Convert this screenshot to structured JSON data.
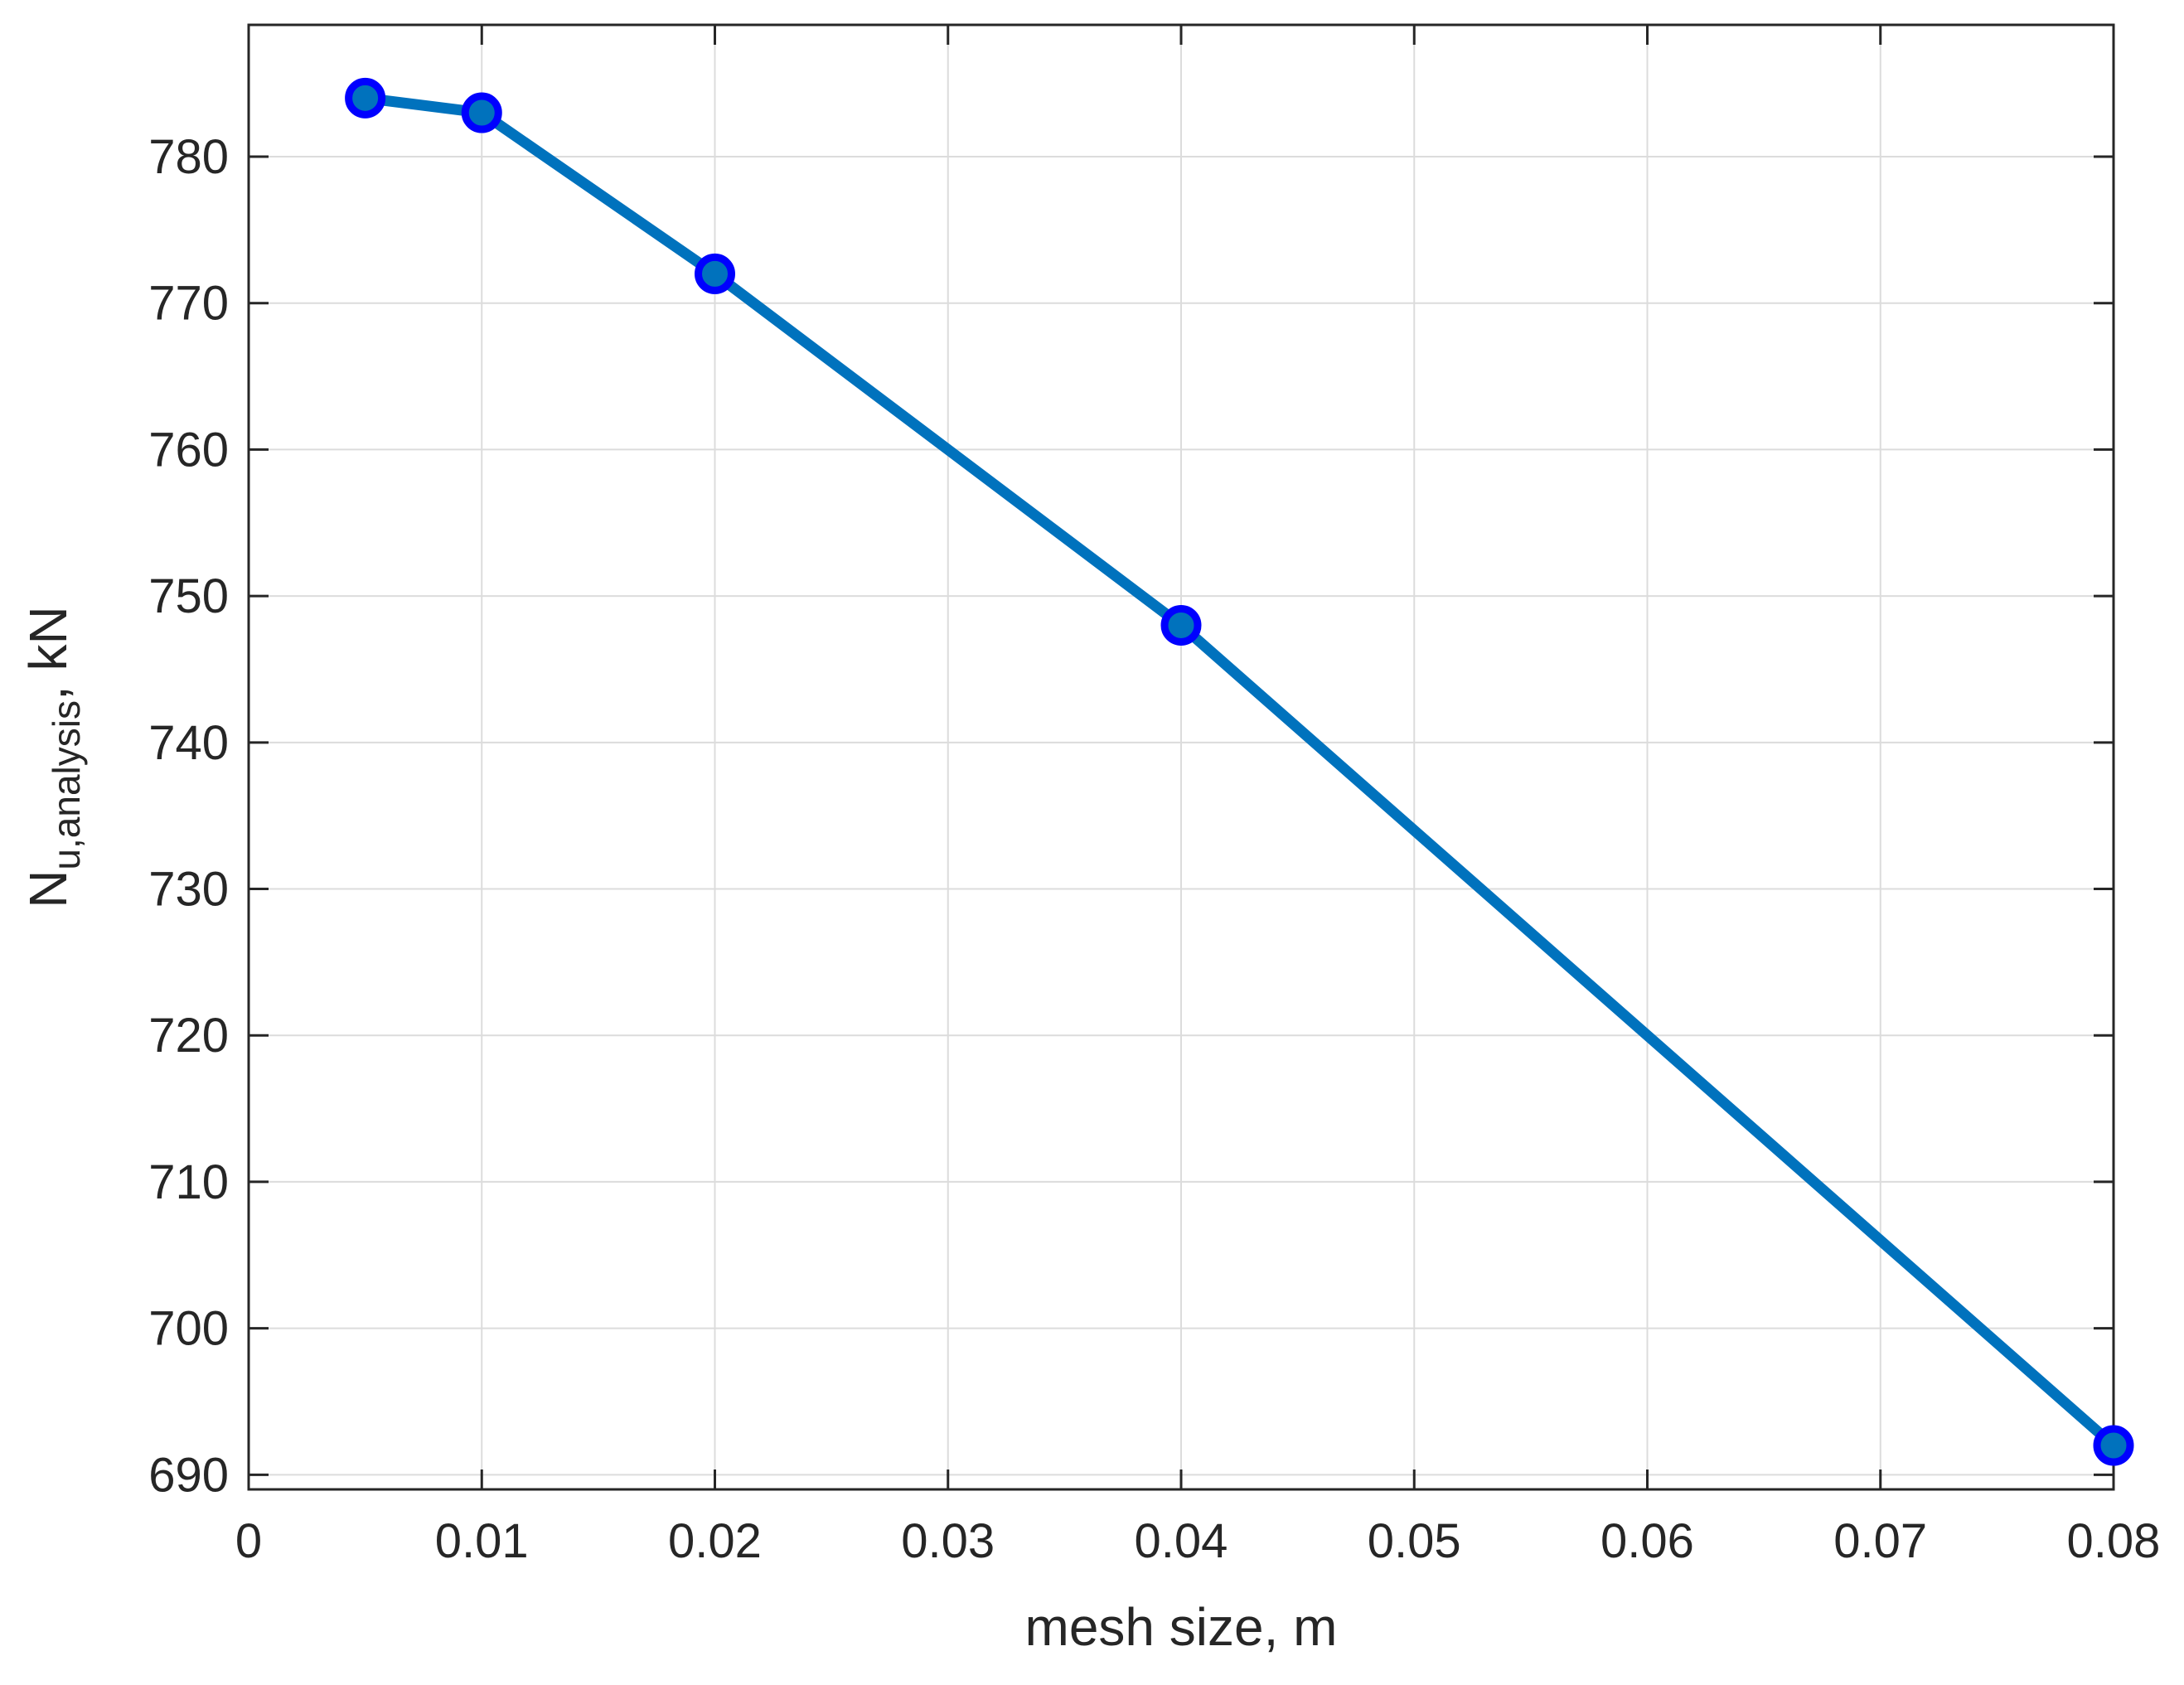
{
  "chart_data": {
    "type": "line",
    "title": "",
    "xlabel": "mesh size, m",
    "ylabel": {
      "main": "N",
      "subscript": "u,analysis",
      "suffix": ", kN"
    },
    "xlim": [
      0,
      0.08
    ],
    "ylim": [
      689,
      789
    ],
    "x_ticks": [
      0,
      0.01,
      0.02,
      0.03,
      0.04,
      0.05,
      0.06,
      0.07,
      0.08
    ],
    "x_tick_labels": [
      "0",
      "0.01",
      "0.02",
      "0.03",
      "0.04",
      "0.05",
      "0.06",
      "0.07",
      "0.08"
    ],
    "y_ticks": [
      690,
      700,
      710,
      720,
      730,
      740,
      750,
      760,
      770,
      780
    ],
    "y_tick_labels": [
      "690",
      "700",
      "710",
      "720",
      "730",
      "740",
      "750",
      "760",
      "770",
      "780"
    ],
    "grid": true,
    "box": true,
    "series": [
      {
        "x": [
          0.005,
          0.01,
          0.02,
          0.04,
          0.08
        ],
        "y": [
          784,
          783,
          772,
          748,
          692
        ],
        "line_color": "#0072BD",
        "marker": "circle",
        "marker_edge_color": "#0000FF",
        "marker_face_color": "#0072BD"
      }
    ]
  }
}
